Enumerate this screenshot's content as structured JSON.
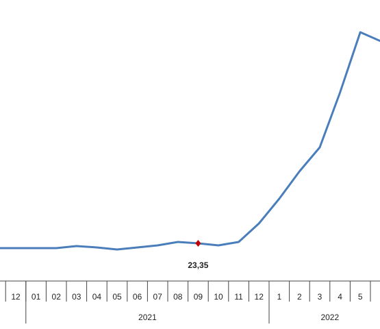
{
  "chart_data": {
    "type": "line",
    "categories": [
      null,
      "12",
      "01",
      "02",
      "03",
      "04",
      "05",
      "06",
      "07",
      "08",
      "09",
      "10",
      "11",
      "12",
      "1",
      "2",
      "3",
      "4",
      "5",
      null
    ],
    "series": [
      {
        "color": "#4a7ebb",
        "values": [
          20.38,
          20.38,
          20.38,
          20.38,
          21.65,
          20.8,
          19.53,
          20.8,
          22.08,
          24.2,
          23.35,
          22.08,
          24.2,
          35.66,
          50.95,
          67.93,
          82.79,
          116.75,
          154.11,
          148.59
        ],
        "value_labels": [
          null,
          null,
          null,
          null,
          null,
          null,
          null,
          null,
          null,
          null,
          "23,35",
          null,
          null,
          null,
          null,
          null,
          null,
          null,
          null,
          null
        ]
      }
    ],
    "groups": [
      {
        "label": "2021",
        "start": 2,
        "end": 13
      },
      {
        "label": "2022",
        "start": 14,
        "end": 19
      }
    ],
    "marker_color": "#c00000"
  }
}
